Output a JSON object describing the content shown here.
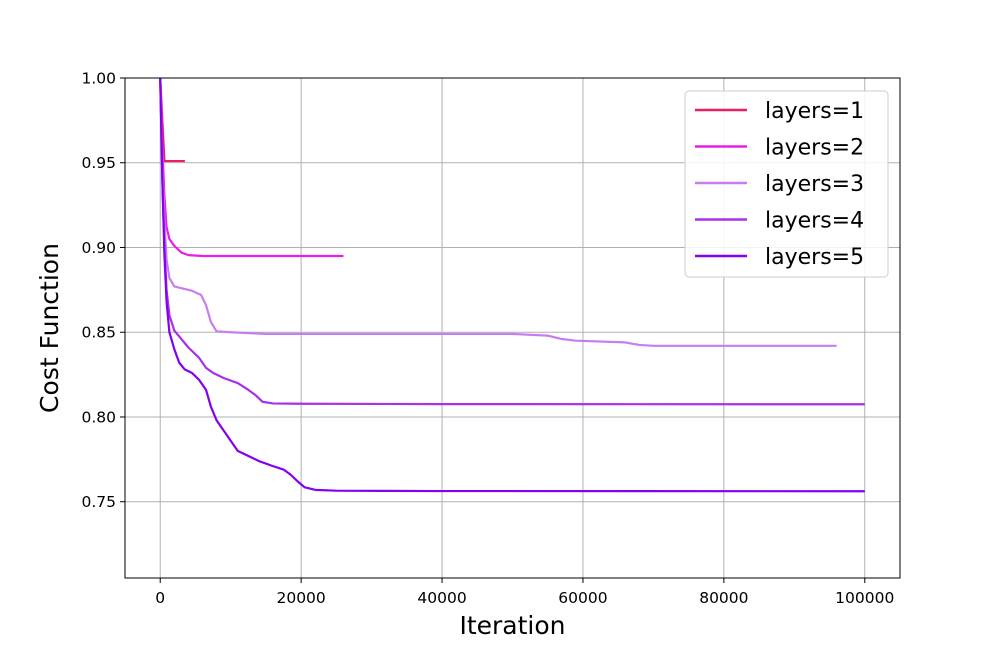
{
  "chart_data": {
    "type": "line",
    "title": "",
    "xlabel": "Iteration",
    "ylabel": "Cost Function",
    "xlim": [
      -5000,
      105000
    ],
    "ylim": [
      0.705,
      1.0
    ],
    "xticks": [
      0,
      20000,
      40000,
      60000,
      80000,
      100000
    ],
    "xtick_labels": [
      "0",
      "20000",
      "40000",
      "60000",
      "80000",
      "100000"
    ],
    "yticks": [
      0.75,
      0.8,
      0.85,
      0.9,
      0.95,
      1.0
    ],
    "ytick_labels": [
      "0.75",
      "0.80",
      "0.85",
      "0.90",
      "0.95",
      "1.00"
    ],
    "grid": true,
    "legend_position": "top-right",
    "series": [
      {
        "name": "layers=1",
        "color": "#e91e63",
        "points": [
          [
            0,
            1.0
          ],
          [
            300,
            0.975
          ],
          [
            600,
            0.951
          ],
          [
            3500,
            0.951
          ]
        ]
      },
      {
        "name": "layers=2",
        "color": "#e91ee9",
        "points": [
          [
            0,
            1.0
          ],
          [
            300,
            0.96
          ],
          [
            600,
            0.93
          ],
          [
            900,
            0.912
          ],
          [
            1300,
            0.905
          ],
          [
            2000,
            0.901
          ],
          [
            3000,
            0.897
          ],
          [
            4000,
            0.8955
          ],
          [
            6000,
            0.895
          ],
          [
            26000,
            0.895
          ]
        ]
      },
      {
        "name": "layers=3",
        "color": "#c77df0",
        "points": [
          [
            0,
            1.0
          ],
          [
            300,
            0.95
          ],
          [
            600,
            0.915
          ],
          [
            900,
            0.893
          ],
          [
            1300,
            0.882
          ],
          [
            2000,
            0.877
          ],
          [
            3000,
            0.876
          ],
          [
            4500,
            0.8745
          ],
          [
            5800,
            0.872
          ],
          [
            6500,
            0.866
          ],
          [
            7200,
            0.856
          ],
          [
            8000,
            0.8505
          ],
          [
            10000,
            0.85
          ],
          [
            15000,
            0.849
          ],
          [
            30000,
            0.849
          ],
          [
            50000,
            0.849
          ],
          [
            55000,
            0.848
          ],
          [
            57000,
            0.846
          ],
          [
            59000,
            0.845
          ],
          [
            66000,
            0.844
          ],
          [
            68000,
            0.8425
          ],
          [
            70000,
            0.842
          ],
          [
            96000,
            0.842
          ]
        ]
      },
      {
        "name": "layers=4",
        "color": "#a830e8",
        "points": [
          [
            0,
            1.0
          ],
          [
            300,
            0.94
          ],
          [
            600,
            0.9
          ],
          [
            900,
            0.875
          ],
          [
            1300,
            0.86
          ],
          [
            2000,
            0.851
          ],
          [
            3000,
            0.846
          ],
          [
            4000,
            0.841
          ],
          [
            5500,
            0.835
          ],
          [
            6500,
            0.829
          ],
          [
            7500,
            0.826
          ],
          [
            9000,
            0.823
          ],
          [
            11000,
            0.82
          ],
          [
            12500,
            0.816
          ],
          [
            13500,
            0.813
          ],
          [
            14500,
            0.809
          ],
          [
            16000,
            0.808
          ],
          [
            20000,
            0.8078
          ],
          [
            40000,
            0.8076
          ],
          [
            100000,
            0.8075
          ]
        ]
      },
      {
        "name": "layers=5",
        "color": "#8400f0",
        "points": [
          [
            0,
            1.0
          ],
          [
            300,
            0.94
          ],
          [
            600,
            0.895
          ],
          [
            900,
            0.868
          ],
          [
            1300,
            0.85
          ],
          [
            2000,
            0.84
          ],
          [
            2700,
            0.832
          ],
          [
            3500,
            0.828
          ],
          [
            4500,
            0.826
          ],
          [
            5500,
            0.822
          ],
          [
            6500,
            0.816
          ],
          [
            7200,
            0.806
          ],
          [
            8000,
            0.798
          ],
          [
            9000,
            0.792
          ],
          [
            10000,
            0.786
          ],
          [
            11000,
            0.78
          ],
          [
            12000,
            0.778
          ],
          [
            13000,
            0.776
          ],
          [
            14000,
            0.774
          ],
          [
            16000,
            0.771
          ],
          [
            17500,
            0.769
          ],
          [
            18500,
            0.766
          ],
          [
            19500,
            0.762
          ],
          [
            20500,
            0.7585
          ],
          [
            22000,
            0.757
          ],
          [
            25000,
            0.7565
          ],
          [
            40000,
            0.7563
          ],
          [
            100000,
            0.7562
          ]
        ]
      }
    ]
  }
}
